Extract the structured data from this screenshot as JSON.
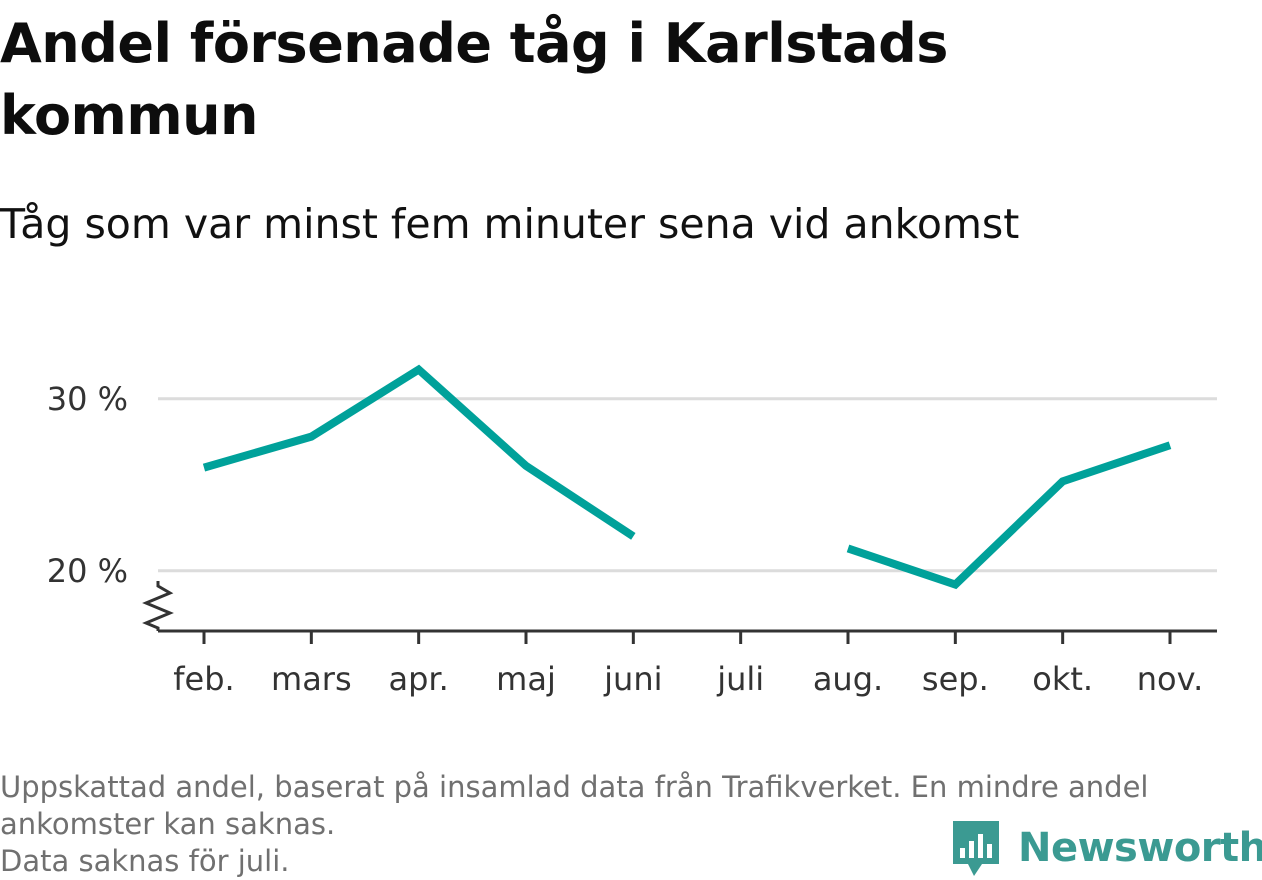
{
  "chart_data": {
    "type": "line",
    "title": "Andel försenade tåg i Karlstads kommun",
    "subtitle": "Tåg som var minst fem minuter sena vid ankomst",
    "categories": [
      "feb.",
      "mars",
      "apr.",
      "maj",
      "juni",
      "juli",
      "aug.",
      "sep.",
      "okt.",
      "nov."
    ],
    "series": [
      {
        "values": [
          26.0,
          27.8,
          31.7,
          26.1,
          22.0,
          null,
          21.3,
          19.2,
          25.2,
          27.3
        ]
      }
    ],
    "y_ticks": [
      20,
      30
    ],
    "y_tick_labels": [
      "20 %",
      "30 %"
    ],
    "ylim": [
      16.5,
      34
    ],
    "y_axis_break": true,
    "grid": true,
    "line_color": "#00a19a"
  },
  "footnote": {
    "line1": "Uppskattad andel, baserat på insamlad data från Trafikverket. En mindre andel",
    "line2": "ankomster kan saknas.",
    "line3": "Data saknas för juli."
  },
  "brand": {
    "name": "Newsworthy",
    "icon": "bar-chart-speech-bubble-icon",
    "color": "#3b9a92"
  }
}
